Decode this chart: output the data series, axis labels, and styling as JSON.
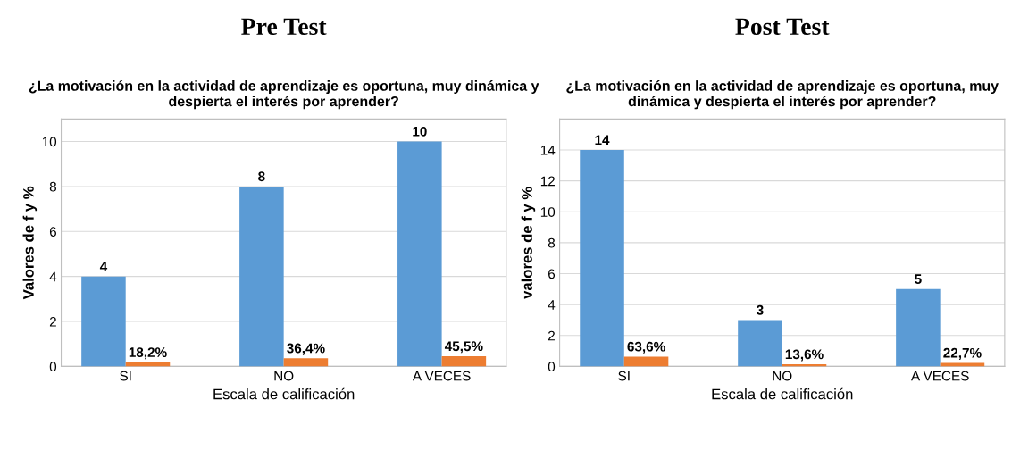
{
  "chart_data": [
    {
      "type": "bar",
      "title": "Pre Test",
      "subtitle": "¿La motivación en la actividad de aprendizaje es oportuna, muy dinámica y despierta el interés por aprender?",
      "xlabel": "Escala de calificación",
      "ylabel": "Valores de f y %",
      "categories": [
        "SI",
        "NO",
        "A VECES"
      ],
      "ylim": [
        0,
        11
      ],
      "yticks": [
        0,
        2,
        4,
        6,
        8,
        10
      ],
      "grid": "y",
      "series": [
        {
          "color": "#5b9bd5",
          "values": [
            4,
            8,
            10
          ],
          "value_labels": [
            "4",
            "8",
            "10"
          ]
        },
        {
          "color": "#ed7d31",
          "values": [
            0.182,
            0.364,
            0.455
          ],
          "value_labels": [
            "18,2%",
            "36,4%",
            "45,5%"
          ]
        }
      ]
    },
    {
      "type": "bar",
      "title": "Post Test",
      "subtitle": "¿La motivación en la actividad de aprendizaje es oportuna, muy dinámica y despierta el interés por aprender?",
      "xlabel": "Escala de calificación",
      "ylabel": "valores de f y %",
      "categories": [
        "SI",
        "NO",
        "A VECES"
      ],
      "ylim": [
        0,
        16
      ],
      "yticks": [
        0,
        2,
        4,
        6,
        8,
        10,
        12,
        14
      ],
      "grid": "y",
      "series": [
        {
          "color": "#5b9bd5",
          "values": [
            14,
            3,
            5
          ],
          "value_labels": [
            "14",
            "3",
            "5"
          ]
        },
        {
          "color": "#ed7d31",
          "values": [
            0.636,
            0.136,
            0.227
          ],
          "value_labels": [
            "63,6%",
            "13,6%",
            "22,7%"
          ]
        }
      ]
    }
  ]
}
